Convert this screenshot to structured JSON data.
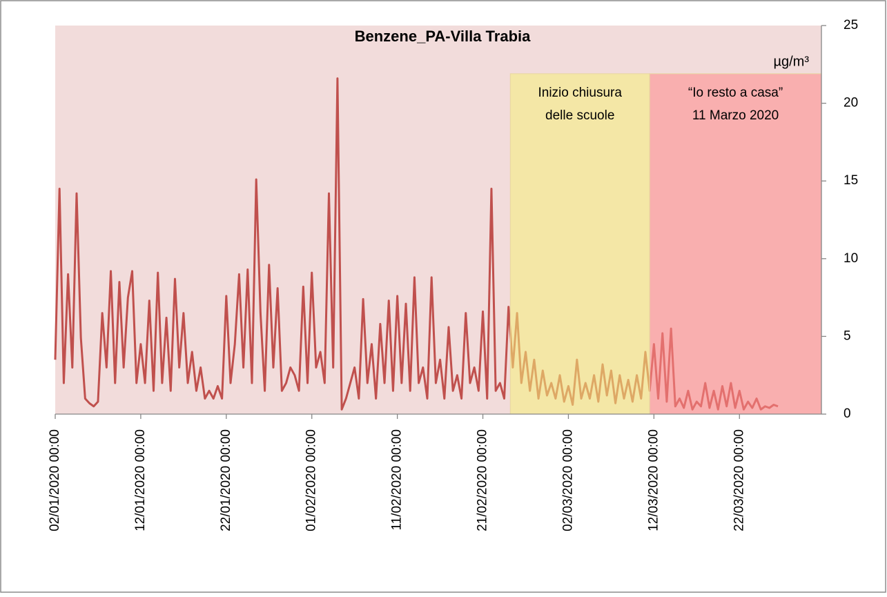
{
  "chart_data": {
    "type": "line",
    "title": "Benzene_PA-Villa Trabia",
    "unit": "µg/m³",
    "xlim": [
      "02/01/2020 00:00",
      "31/03/2020 14:00"
    ],
    "xticks": [
      "02/01/2020 00:00",
      "12/01/2020 00:00",
      "22/01/2020 00:00",
      "01/02/2020 00:00",
      "11/02/2020 00:00",
      "21/02/2020 00:00",
      "02/03/2020 00:00",
      "12/03/2020 00:00",
      "22/03/2020 00:00"
    ],
    "ylim": [
      0,
      25
    ],
    "yticks": [
      0,
      5,
      10,
      15,
      20,
      25
    ],
    "background": "#f2dcdb",
    "bands": [
      {
        "x": [
          "24/02/2020 05:00",
          "11/03/2020 12:00"
        ],
        "y": [
          0,
          21.9
        ],
        "color": "#f5f07a",
        "label": [
          "Inizio chiusura",
          "delle scuole"
        ]
      },
      {
        "x": [
          "11/03/2020 12:00",
          "31/03/2020 14:00"
        ],
        "y": [
          0,
          21.9
        ],
        "color": "#ff8a8a",
        "label": [
          "“Io resto a casa”",
          "11 Marzo 2020"
        ]
      }
    ],
    "x": [
      "02/01/2020 00:00",
      "02/01/2020 12:00",
      "03/01/2020 00:00",
      "03/01/2020 12:00",
      "04/01/2020 00:00",
      "04/01/2020 12:00",
      "05/01/2020 00:00",
      "05/01/2020 12:00",
      "06/01/2020 00:00",
      "06/01/2020 12:00",
      "07/01/2020 00:00",
      "07/01/2020 12:00",
      "08/01/2020 00:00",
      "08/01/2020 12:00",
      "09/01/2020 00:00",
      "09/01/2020 12:00",
      "10/01/2020 00:00",
      "10/01/2020 12:00",
      "11/01/2020 00:00",
      "11/01/2020 12:00",
      "12/01/2020 00:00",
      "12/01/2020 12:00",
      "13/01/2020 00:00",
      "13/01/2020 12:00",
      "14/01/2020 00:00",
      "14/01/2020 12:00",
      "15/01/2020 00:00",
      "15/01/2020 12:00",
      "16/01/2020 00:00",
      "16/01/2020 12:00",
      "17/01/2020 00:00",
      "17/01/2020 12:00",
      "18/01/2020 00:00",
      "18/01/2020 12:00",
      "19/01/2020 00:00",
      "19/01/2020 12:00",
      "20/01/2020 00:00",
      "20/01/2020 12:00",
      "21/01/2020 00:00",
      "21/01/2020 12:00",
      "22/01/2020 00:00",
      "22/01/2020 12:00",
      "23/01/2020 00:00",
      "23/01/2020 12:00",
      "24/01/2020 00:00",
      "24/01/2020 12:00",
      "25/01/2020 00:00",
      "25/01/2020 12:00",
      "26/01/2020 00:00",
      "26/01/2020 12:00",
      "27/01/2020 00:00",
      "27/01/2020 12:00",
      "28/01/2020 00:00",
      "28/01/2020 12:00",
      "29/01/2020 00:00",
      "29/01/2020 12:00",
      "30/01/2020 00:00",
      "30/01/2020 12:00",
      "31/01/2020 00:00",
      "31/01/2020 12:00",
      "01/02/2020 00:00",
      "01/02/2020 12:00",
      "02/02/2020 00:00",
      "02/02/2020 12:00",
      "03/02/2020 00:00",
      "03/02/2020 12:00",
      "04/02/2020 00:00",
      "04/02/2020 12:00",
      "05/02/2020 00:00",
      "05/02/2020 12:00",
      "06/02/2020 00:00",
      "06/02/2020 12:00",
      "07/02/2020 00:00",
      "07/02/2020 12:00",
      "08/02/2020 00:00",
      "08/02/2020 12:00",
      "09/02/2020 00:00",
      "09/02/2020 12:00",
      "10/02/2020 00:00",
      "10/02/2020 12:00",
      "11/02/2020 00:00",
      "11/02/2020 12:00",
      "12/02/2020 00:00",
      "12/02/2020 12:00",
      "13/02/2020 00:00",
      "13/02/2020 12:00",
      "14/02/2020 00:00",
      "14/02/2020 12:00",
      "15/02/2020 00:00",
      "15/02/2020 12:00",
      "16/02/2020 00:00",
      "16/02/2020 12:00",
      "17/02/2020 00:00",
      "17/02/2020 12:00",
      "18/02/2020 00:00",
      "18/02/2020 12:00",
      "19/02/2020 00:00",
      "19/02/2020 12:00",
      "20/02/2020 00:00",
      "20/02/2020 12:00",
      "21/02/2020 00:00",
      "21/02/2020 12:00",
      "22/02/2020 00:00",
      "22/02/2020 12:00",
      "23/02/2020 00:00",
      "23/02/2020 12:00",
      "24/02/2020 00:00",
      "24/02/2020 12:00",
      "25/02/2020 00:00",
      "25/02/2020 12:00",
      "26/02/2020 00:00",
      "26/02/2020 12:00",
      "27/02/2020 00:00",
      "27/02/2020 12:00",
      "28/02/2020 00:00",
      "28/02/2020 12:00",
      "29/02/2020 00:00",
      "29/02/2020 12:00",
      "01/03/2020 00:00",
      "01/03/2020 12:00",
      "02/03/2020 00:00",
      "02/03/2020 12:00",
      "03/03/2020 00:00",
      "03/03/2020 12:00",
      "04/03/2020 00:00",
      "04/03/2020 12:00",
      "05/03/2020 00:00",
      "05/03/2020 12:00",
      "06/03/2020 00:00",
      "06/03/2020 12:00",
      "07/03/2020 00:00",
      "07/03/2020 12:00",
      "08/03/2020 00:00",
      "08/03/2020 12:00",
      "09/03/2020 00:00",
      "09/03/2020 12:00",
      "10/03/2020 00:00",
      "10/03/2020 12:00",
      "11/03/2020 00:00",
      "11/03/2020 12:00",
      "12/03/2020 00:00",
      "12/03/2020 12:00",
      "13/03/2020 00:00",
      "13/03/2020 12:00",
      "14/03/2020 00:00",
      "14/03/2020 12:00",
      "15/03/2020 00:00",
      "15/03/2020 12:00",
      "16/03/2020 00:00",
      "16/03/2020 12:00",
      "17/03/2020 00:00",
      "17/03/2020 12:00",
      "18/03/2020 00:00",
      "18/03/2020 12:00",
      "19/03/2020 00:00",
      "19/03/2020 12:00",
      "20/03/2020 00:00",
      "20/03/2020 12:00",
      "21/03/2020 00:00",
      "21/03/2020 12:00",
      "22/03/2020 00:00",
      "22/03/2020 12:00",
      "23/03/2020 00:00",
      "23/03/2020 12:00",
      "24/03/2020 00:00",
      "24/03/2020 12:00",
      "25/03/2020 00:00",
      "25/03/2020 12:00",
      "26/03/2020 00:00",
      "26/03/2020 12:00"
    ],
    "series": [
      {
        "color": "#c0504d",
        "values": [
          3.5,
          14.5,
          2,
          9,
          3,
          14.2,
          4.9,
          1,
          0.7,
          0.5,
          0.8,
          6.5,
          3,
          9.2,
          2,
          8.5,
          3,
          7.5,
          9.2,
          2,
          4.5,
          2,
          7.3,
          1.5,
          9.1,
          2,
          6.2,
          1.5,
          8.7,
          3,
          6.5,
          2,
          4,
          1.5,
          3,
          1,
          1.5,
          1,
          1.8,
          1,
          7.6,
          2,
          4.5,
          9,
          3,
          9.3,
          2,
          15.1,
          6.5,
          1.5,
          9.6,
          3,
          8.1,
          1.5,
          2,
          3,
          2.5,
          1.5,
          8.2,
          2,
          9.1,
          3,
          4,
          2,
          14.2,
          3,
          21.6,
          0.3,
          1,
          2,
          3,
          1,
          7.4,
          2,
          4.5,
          1,
          5.8,
          2,
          7.3,
          1.5,
          7.6,
          2,
          7.1,
          1.5,
          8.8,
          2,
          3,
          1,
          8.8,
          2,
          3.5,
          1,
          5.6,
          1.5,
          2.5,
          1,
          6.5,
          2,
          3,
          1.5,
          6.6,
          1,
          14.5,
          1.5,
          2,
          1,
          6.9,
          3,
          6.5,
          2,
          4,
          1.5,
          3.5,
          1,
          2.8,
          1.2,
          2,
          1,
          2.5,
          0.8,
          1.8,
          0.6,
          3.5,
          1,
          2,
          1,
          2.5,
          0.8,
          3.2,
          1.2,
          2.8,
          0.7,
          2.5,
          1,
          2.2,
          0.8,
          2.5,
          1,
          4,
          1.5,
          4.5,
          1,
          5.2,
          0.8,
          5.5,
          0.5,
          1,
          0.4,
          1.5,
          0.3,
          0.8,
          0.5,
          2,
          0.4,
          1.5,
          0.3,
          1.8,
          0.5,
          2,
          0.4,
          1.5,
          0.3,
          0.8,
          0.4,
          1,
          0.3,
          0.5,
          0.4,
          0.6,
          0.5
        ]
      }
    ]
  }
}
